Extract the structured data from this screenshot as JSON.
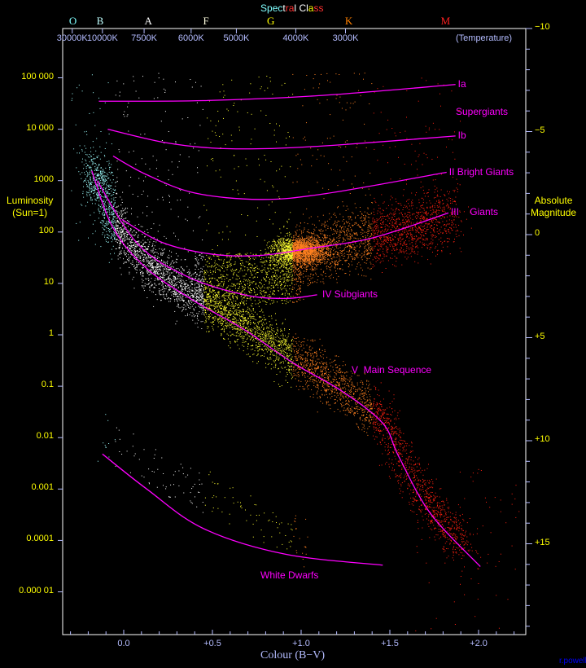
{
  "chart_data": {
    "type": "scatter",
    "title": "Spectral Class",
    "title_colors": [
      "#80ffff",
      "#80ffff",
      "#80ffff",
      "#80ffff",
      "#ffffff",
      "#ff3030",
      "#ff3030",
      "#ffffff",
      "#ffffff",
      "#ffffff",
      "#ffffff",
      "#ffff00",
      "#ff3030",
      "#ff3030"
    ],
    "xlabel": "Colour (B−V)",
    "ylabel_left": "Luminosity\n(Sun=1)",
    "ylabel_right": "Absolute\nMagnitude",
    "temperature_label": "(Temperature)",
    "xlim": [
      -0.34,
      2.27
    ],
    "ylim_luminosity": [
      1.6e-06,
      950000
    ],
    "y_scale": "log",
    "x_ticks": [
      {
        "value": 0.0,
        "label": "0.0"
      },
      {
        "value": 0.5,
        "label": "+0.5"
      },
      {
        "value": 1.0,
        "label": "+1.0"
      },
      {
        "value": 1.5,
        "label": "+1.5"
      },
      {
        "value": 2.0,
        "label": "+2.0"
      }
    ],
    "y_ticks_luminosity": [
      {
        "value": 100000,
        "label": "100 000"
      },
      {
        "value": 10000,
        "label": "10 000"
      },
      {
        "value": 1000,
        "label": "1000"
      },
      {
        "value": 100,
        "label": "100"
      },
      {
        "value": 10,
        "label": "10"
      },
      {
        "value": 1,
        "label": "1"
      },
      {
        "value": 0.1,
        "label": "0.1"
      },
      {
        "value": 0.01,
        "label": "0.01"
      },
      {
        "value": 0.001,
        "label": "0.001"
      },
      {
        "value": 0.0001,
        "label": "0.0001"
      },
      {
        "value": 1e-05,
        "label": "0.000 01"
      }
    ],
    "y_ticks_magnitude": [
      {
        "value": -10,
        "label": "−10"
      },
      {
        "value": -5,
        "label": "−5"
      },
      {
        "value": 0,
        "label": "0"
      },
      {
        "value": 5,
        "label": "+5"
      },
      {
        "value": 10,
        "label": "+10"
      },
      {
        "value": 15,
        "label": "+15"
      }
    ],
    "temperature_ticks": [
      {
        "bv": -0.29,
        "label": "30000K"
      },
      {
        "bv": -0.12,
        "label": "10000K"
      },
      {
        "bv": 0.115,
        "label": "7500K"
      },
      {
        "bv": 0.38,
        "label": "6000K"
      },
      {
        "bv": 0.635,
        "label": "5000K"
      },
      {
        "bv": 0.97,
        "label": "4000K"
      },
      {
        "bv": 1.25,
        "label": "3000K"
      }
    ],
    "spectral_classes": [
      {
        "bv": -0.285,
        "label": "O",
        "color": "#80ffff"
      },
      {
        "bv": -0.13,
        "label": "B",
        "color": "#c0ffff"
      },
      {
        "bv": 0.14,
        "label": "A",
        "color": "#ffffff"
      },
      {
        "bv": 0.47,
        "label": "F",
        "color": "#ffffe0"
      },
      {
        "bv": 0.83,
        "label": "G",
        "color": "#ffff00"
      },
      {
        "bv": 1.27,
        "label": "K",
        "color": "#ff8000"
      },
      {
        "bv": 1.81,
        "label": "M",
        "color": "#ff2020"
      }
    ],
    "sequences": [
      {
        "name": "Ia",
        "points": [
          [
            -0.14,
            35000
          ],
          [
            0.45,
            36000
          ],
          [
            1.1,
            45000
          ],
          [
            1.87,
            74000
          ]
        ]
      },
      {
        "name": "Ib",
        "points": [
          [
            -0.09,
            10000
          ],
          [
            0.22,
            5600
          ],
          [
            0.5,
            4300
          ],
          [
            0.82,
            4200
          ],
          [
            1.23,
            5000
          ],
          [
            1.87,
            7400
          ]
        ]
      },
      {
        "name": "II Bright Giants",
        "points": [
          [
            -0.06,
            3000
          ],
          [
            0.13,
            1300
          ],
          [
            0.4,
            575
          ],
          [
            0.77,
            430
          ],
          [
            1.14,
            560
          ],
          [
            1.82,
            1450
          ]
        ]
      },
      {
        "name": "III    Giants",
        "points": [
          [
            -0.01,
            175
          ],
          [
            0.22,
            62
          ],
          [
            0.5,
            37
          ],
          [
            0.77,
            35
          ],
          [
            1.05,
            48
          ],
          [
            1.41,
            78
          ],
          [
            1.83,
            235
          ]
        ]
      },
      {
        "name": "IV Subgiants",
        "points": [
          [
            -0.15,
            1000
          ],
          [
            0.08,
            58
          ],
          [
            0.36,
            13.5
          ],
          [
            0.68,
            6.0
          ],
          [
            0.91,
            5.1
          ],
          [
            1.09,
            6.0
          ]
        ]
      },
      {
        "name": "V  Main Sequence",
        "points": [
          [
            -0.18,
            1550
          ],
          [
            -0.06,
            120
          ],
          [
            0.13,
            19.5
          ],
          [
            0.4,
            4.5
          ],
          [
            0.68,
            1.26
          ],
          [
            0.95,
            0.29
          ],
          [
            1.23,
            0.08
          ],
          [
            1.46,
            0.019
          ],
          [
            1.55,
            0.0043
          ],
          [
            1.73,
            0.00033
          ],
          [
            2.01,
            3.1e-05
          ]
        ]
      },
      {
        "name": "White Dwarfs",
        "points": [
          [
            -0.12,
            0.0048
          ],
          [
            0.13,
            0.001
          ],
          [
            0.45,
            0.00017
          ],
          [
            0.91,
            5.4e-05
          ],
          [
            1.46,
            3.3e-05
          ]
        ]
      }
    ],
    "annotations": {
      "supergiants": "Supergiants"
    },
    "series_color": "#ff00ff",
    "grid": false
  },
  "credit": "r.powell",
  "colors": {
    "tick_label": "#ffff00",
    "axis": "#b4bcff",
    "frame": "#ffffff",
    "sequence": "#ff00ff",
    "credit": "#0000ff"
  }
}
